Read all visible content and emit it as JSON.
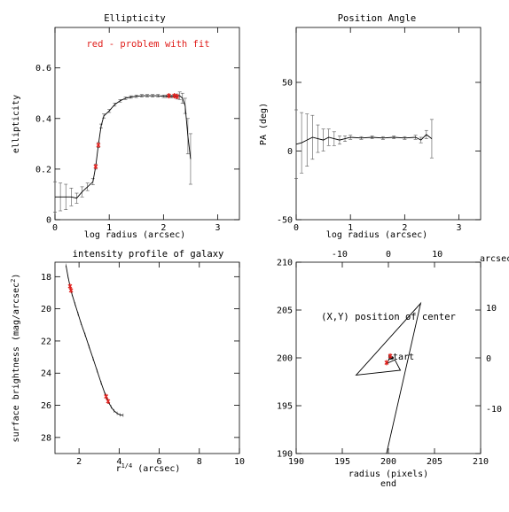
{
  "chart_data": [
    {
      "type": "line",
      "title": "Ellipticity",
      "xlabel": "log radius (arcsec)",
      "ylabel": "ellipticity",
      "xlim": [
        0,
        3.4
      ],
      "ylim": [
        0,
        0.76
      ],
      "xticks": [
        0,
        1,
        2,
        3
      ],
      "yticks": [
        0,
        0.2,
        0.4,
        0.6
      ],
      "note": "red - problem with fit",
      "note_color": "#e0201d",
      "x": [
        0.0,
        0.1,
        0.2,
        0.3,
        0.4,
        0.5,
        0.6,
        0.7,
        0.75,
        0.8,
        0.85,
        0.9,
        1.0,
        1.1,
        1.2,
        1.3,
        1.4,
        1.5,
        1.6,
        1.7,
        1.8,
        1.9,
        2.0,
        2.05,
        2.1,
        2.15,
        2.2,
        2.25,
        2.3,
        2.35,
        2.4,
        2.45,
        2.5
      ],
      "y": [
        0.09,
        0.09,
        0.09,
        0.09,
        0.085,
        0.11,
        0.13,
        0.15,
        0.21,
        0.295,
        0.37,
        0.41,
        0.43,
        0.455,
        0.47,
        0.48,
        0.485,
        0.488,
        0.49,
        0.49,
        0.49,
        0.49,
        0.488,
        0.488,
        0.49,
        0.487,
        0.49,
        0.487,
        0.49,
        0.48,
        0.45,
        0.33,
        0.24
      ],
      "yerr": [
        0.06,
        0.055,
        0.05,
        0.035,
        0.02,
        0.02,
        0.015,
        0.012,
        0.01,
        0.01,
        0.008,
        0.008,
        0.006,
        0.006,
        0.005,
        0.005,
        0.005,
        0.005,
        0.005,
        0.005,
        0.005,
        0.005,
        0.005,
        0.005,
        0.005,
        0.005,
        0.005,
        0.01,
        0.015,
        0.02,
        0.03,
        0.07,
        0.1
      ],
      "problem_x": [
        0.75,
        0.8,
        2.1,
        2.2,
        2.25
      ],
      "problem_y": [
        0.21,
        0.295,
        0.49,
        0.49,
        0.487
      ]
    },
    {
      "type": "line",
      "title": "Position Angle",
      "xlabel": "log radius (arcsec)",
      "ylabel": "PA (deg)",
      "xlim": [
        0,
        3.4
      ],
      "ylim": [
        -50,
        90
      ],
      "xticks": [
        0,
        1,
        2,
        3
      ],
      "yticks": [
        -50,
        0,
        50
      ],
      "x": [
        0.0,
        0.1,
        0.2,
        0.3,
        0.4,
        0.5,
        0.6,
        0.7,
        0.8,
        0.9,
        1.0,
        1.2,
        1.4,
        1.6,
        1.8,
        2.0,
        2.2,
        2.3,
        2.4,
        2.5
      ],
      "y": [
        5,
        6,
        8,
        10,
        9,
        8,
        10,
        9,
        8,
        9,
        10,
        9.5,
        10,
        9.5,
        10,
        9.5,
        10,
        8,
        12,
        9
      ],
      "yerr": [
        25,
        22,
        19,
        16,
        10,
        8,
        6,
        5,
        3,
        2,
        1.5,
        1,
        1,
        1,
        1,
        1,
        1.5,
        2,
        3,
        14
      ]
    },
    {
      "type": "line",
      "title": "intensity profile of galaxy",
      "xlabel": "r1/4 (arcsec)",
      "xlabel_main": "r",
      "xlabel_sup": "1/4",
      "xlabel_rest": " (arcsec)",
      "ylabel": "surface brightness (mag/arcsec2)",
      "ylabel_main": "surface brightness (mag/arcsec",
      "ylabel_sup": "2",
      "ylabel_rest": ")",
      "xlim": [
        0.8,
        10
      ],
      "ylim": [
        29,
        17.1
      ],
      "xticks": [
        2,
        4,
        6,
        8,
        10
      ],
      "yticks": [
        18,
        20,
        22,
        24,
        26,
        28
      ],
      "x": [
        1.35,
        1.45,
        1.55,
        1.65,
        1.8,
        1.95,
        2.1,
        2.3,
        2.5,
        2.7,
        2.9,
        3.1,
        3.3,
        3.45,
        3.6,
        3.75,
        3.9,
        4.05,
        4.2
      ],
      "y": [
        17.3,
        18.0,
        18.6,
        19.1,
        19.7,
        20.3,
        20.9,
        21.6,
        22.35,
        23.1,
        23.85,
        24.6,
        25.3,
        25.75,
        26.1,
        26.35,
        26.5,
        26.6,
        26.62
      ],
      "problem_x": [
        1.55,
        1.6,
        3.35,
        3.45
      ],
      "problem_y": [
        18.6,
        18.85,
        25.45,
        25.75
      ]
    },
    {
      "type": "line",
      "title": "(X,Y) position of center",
      "xlabel": "radius (pixels)",
      "xlim": [
        190,
        210
      ],
      "ylim": [
        190,
        210
      ],
      "xticks": [
        190,
        195,
        200,
        205,
        210
      ],
      "yticks": [
        190,
        195,
        200,
        205,
        210
      ],
      "top_ticks": [
        -10,
        0,
        10
      ],
      "top_label": "arcsec",
      "right_ticks": [
        10,
        0,
        -10
      ],
      "start_label": "start",
      "end_label": "end",
      "x": [
        200.4,
        200.2,
        200.0,
        199.8,
        200.7,
        201.3,
        196.5,
        203.5,
        199.8
      ],
      "y": [
        200.0,
        200.2,
        199.7,
        199.4,
        199.8,
        198.7,
        198.2,
        205.7,
        190.0
      ],
      "problem_x": [
        200.2,
        199.8
      ],
      "problem_y": [
        200.2,
        199.5
      ]
    }
  ]
}
